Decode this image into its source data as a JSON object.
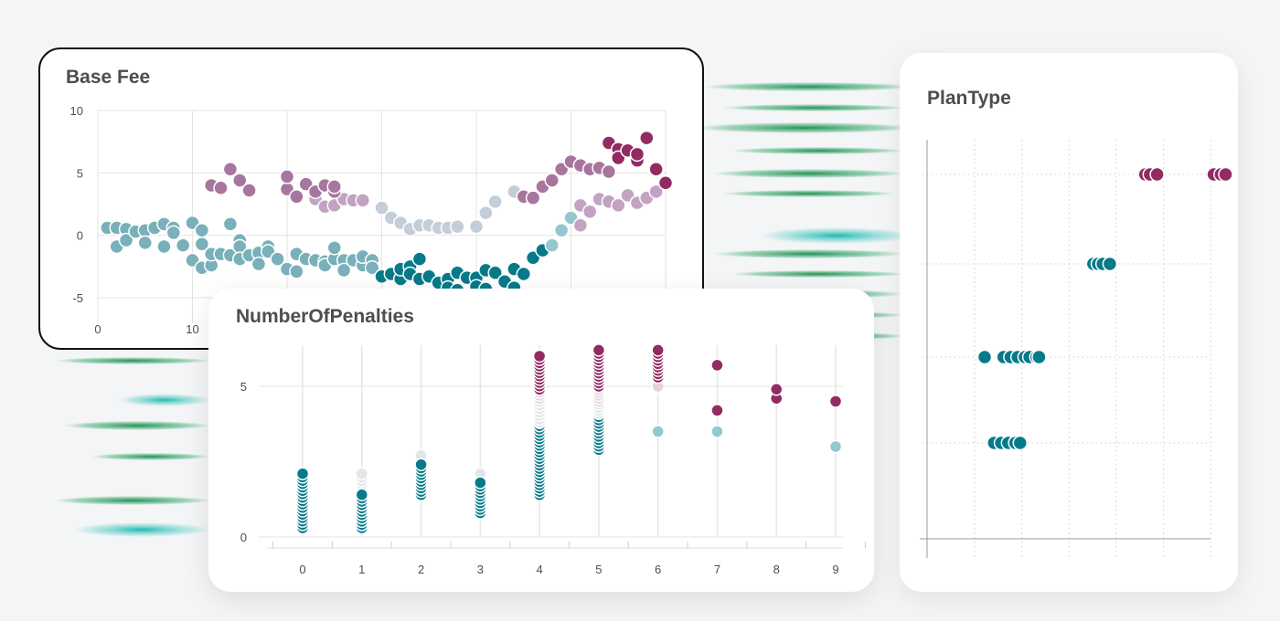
{
  "colors": {
    "teal": "#077a8a",
    "lightTeal": "#95c7cf",
    "mutedTeal": "#79b0ba",
    "gray": "#c4ced8",
    "faintGray": "#e2e6ea",
    "lilac": "#c2a3c2",
    "mauve": "#a7769e",
    "pink": "#e6d2e0",
    "plum": "#922a63"
  },
  "cards": {
    "base_fee": {
      "title": "Base Fee"
    },
    "penalties": {
      "title": "NumberOfPenalties"
    },
    "plan_type": {
      "title": "PlanType"
    }
  },
  "chart_data": [
    {
      "type": "scatter",
      "title": "Base Fee",
      "xlim": [
        0,
        60
      ],
      "ylim": [
        -5,
        10
      ],
      "x_ticks": [
        "0",
        "10"
      ],
      "y_ticks": [
        "10",
        "5",
        "0",
        "-5"
      ],
      "grid": true,
      "series": [
        {
          "color": "mutedTeal",
          "points": [
            [
              1,
              0.6
            ],
            [
              2,
              0.6
            ],
            [
              2,
              -0.9
            ],
            [
              3,
              0.5
            ],
            [
              3,
              -0.4
            ],
            [
              4,
              0.3
            ],
            [
              5,
              0.4
            ],
            [
              5,
              -0.6
            ],
            [
              6,
              0.6
            ],
            [
              7,
              0.9
            ],
            [
              7,
              -0.9
            ],
            [
              8,
              0.6
            ],
            [
              8,
              0.2
            ],
            [
              9,
              -0.8
            ],
            [
              10,
              1.0
            ],
            [
              10,
              -2.0
            ],
            [
              11,
              0.4
            ],
            [
              11,
              -0.7
            ],
            [
              11,
              -2.6
            ],
            [
              12,
              -2.4
            ],
            [
              12,
              -1.5
            ],
            [
              13,
              -1.5
            ],
            [
              14,
              0.9
            ],
            [
              14,
              -1.6
            ],
            [
              15,
              -0.4
            ],
            [
              15,
              -0.9
            ],
            [
              15,
              -1.9
            ],
            [
              16,
              -1.6
            ],
            [
              17,
              -1.4
            ],
            [
              17,
              -2.3
            ],
            [
              18,
              -0.9
            ],
            [
              18,
              -1.3
            ],
            [
              19,
              -1.9
            ],
            [
              20,
              -2.7
            ],
            [
              21,
              -1.5
            ],
            [
              21,
              -2.9
            ],
            [
              22,
              -1.9
            ],
            [
              23,
              -2.0
            ],
            [
              24,
              -2.1
            ],
            [
              24,
              -2.4
            ],
            [
              25,
              -1.9
            ],
            [
              25,
              -1.0
            ],
            [
              26,
              -2.0
            ],
            [
              26,
              -2.8
            ],
            [
              27,
              -2.0
            ],
            [
              28,
              -2.4
            ],
            [
              28,
              -1.7
            ],
            [
              29,
              -2.0
            ],
            [
              29,
              -2.6
            ]
          ]
        },
        {
          "color": "teal",
          "points": [
            [
              30,
              -3.3
            ],
            [
              31,
              -3.1
            ],
            [
              32,
              -3.5
            ],
            [
              32,
              -2.7
            ],
            [
              33,
              -2.5
            ],
            [
              33,
              -3.1
            ],
            [
              34,
              -1.9
            ],
            [
              34,
              -3.5
            ],
            [
              35,
              -3.3
            ],
            [
              36,
              -3.8
            ],
            [
              37,
              -3.5
            ],
            [
              37,
              -4.2
            ],
            [
              38,
              -3.0
            ],
            [
              38,
              -4.4
            ],
            [
              39,
              -3.4
            ],
            [
              40,
              -3.4
            ],
            [
              40,
              -4.1
            ],
            [
              41,
              -4.3
            ],
            [
              41,
              -2.8
            ],
            [
              42,
              -3.0
            ],
            [
              43,
              -3.7
            ],
            [
              44,
              -4.2
            ],
            [
              44,
              -2.7
            ],
            [
              45,
              -3.1
            ],
            [
              46,
              -1.8
            ],
            [
              47,
              -1.2
            ]
          ]
        },
        {
          "color": "lightTeal",
          "points": [
            [
              48,
              -0.8
            ],
            [
              49,
              0.4
            ],
            [
              50,
              1.4
            ]
          ]
        },
        {
          "color": "gray",
          "points": [
            [
              30,
              2.2
            ],
            [
              31,
              1.4
            ],
            [
              32,
              1.0
            ],
            [
              33,
              0.5
            ],
            [
              34,
              0.8
            ],
            [
              35,
              0.8
            ],
            [
              36,
              0.6
            ],
            [
              37,
              0.6
            ],
            [
              38,
              0.7
            ],
            [
              40,
              0.7
            ],
            [
              41,
              1.8
            ],
            [
              42,
              2.7
            ],
            [
              44,
              3.5
            ]
          ]
        },
        {
          "color": "lilac",
          "points": [
            [
              23,
              2.9
            ],
            [
              24,
              2.3
            ],
            [
              25,
              2.4
            ],
            [
              26,
              2.9
            ],
            [
              27,
              2.8
            ],
            [
              28,
              2.8
            ],
            [
              51,
              0.8
            ],
            [
              51,
              2.4
            ],
            [
              52,
              1.9
            ],
            [
              53,
              2.9
            ],
            [
              54,
              2.7
            ],
            [
              55,
              2.4
            ],
            [
              56,
              3.2
            ],
            [
              57,
              2.6
            ],
            [
              58,
              3.0
            ],
            [
              59,
              3.5
            ]
          ]
        },
        {
          "color": "mauve",
          "points": [
            [
              12,
              4.0
            ],
            [
              13,
              3.8
            ],
            [
              14,
              5.3
            ],
            [
              15,
              4.4
            ],
            [
              16,
              3.6
            ],
            [
              20,
              3.7
            ],
            [
              20,
              4.7
            ],
            [
              21,
              3.1
            ],
            [
              22,
              4.1
            ],
            [
              23,
              3.5
            ],
            [
              24,
              4.0
            ],
            [
              25,
              3.5
            ],
            [
              25,
              3.9
            ],
            [
              45,
              3.1
            ],
            [
              46,
              3.0
            ],
            [
              47,
              3.9
            ],
            [
              48,
              4.4
            ],
            [
              49,
              5.3
            ],
            [
              50,
              5.9
            ],
            [
              51,
              5.6
            ],
            [
              52,
              5.3
            ],
            [
              53,
              5.4
            ],
            [
              54,
              5.1
            ]
          ]
        },
        {
          "color": "plum",
          "points": [
            [
              54,
              7.4
            ],
            [
              55,
              6.9
            ],
            [
              55,
              6.2
            ],
            [
              56,
              6.8
            ],
            [
              57,
              6.0
            ],
            [
              57,
              6.5
            ],
            [
              58,
              7.8
            ],
            [
              59,
              5.3
            ],
            [
              60,
              4.2
            ]
          ]
        }
      ]
    },
    {
      "type": "scatter",
      "title": "NumberOfPenalties",
      "x_ticks": [
        "0",
        "1",
        "2",
        "3",
        "4",
        "5",
        "6",
        "7",
        "8",
        "9"
      ],
      "y_ticks": [
        "5",
        "0"
      ],
      "xlim": [
        -0.6,
        9.2
      ],
      "ylim": [
        -0.5,
        6.4
      ],
      "grid": true,
      "columns": [
        {
          "x": 0,
          "dots": [
            {
              "color": "teal",
              "from": 0.3,
              "to": 2.1
            }
          ]
        },
        {
          "x": 1,
          "dots": [
            {
              "color": "faintGray",
              "from": 1.5,
              "to": 2.1
            },
            {
              "color": "teal",
              "from": 0.3,
              "to": 1.4
            }
          ]
        },
        {
          "x": 2,
          "dots": [
            {
              "color": "faintGray",
              "from": 2.4,
              "to": 2.7
            },
            {
              "color": "teal",
              "from": 1.4,
              "to": 2.4
            }
          ]
        },
        {
          "x": 3,
          "dots": [
            {
              "color": "faintGray",
              "from": 1.8,
              "to": 2.1
            },
            {
              "color": "teal",
              "from": 0.8,
              "to": 1.8
            }
          ]
        },
        {
          "x": 4,
          "dots": [
            {
              "color": "teal",
              "from": 1.4,
              "to": 3.8
            },
            {
              "color": "faintGray",
              "from": 3.8,
              "to": 4.6
            },
            {
              "color": "pink",
              "from": 4.6,
              "to": 4.9
            },
            {
              "color": "plum",
              "from": 4.9,
              "to": 6.0
            }
          ]
        },
        {
          "x": 5,
          "dots": [
            {
              "color": "teal",
              "from": 2.9,
              "to": 4.1
            },
            {
              "color": "faintGray",
              "from": 4.1,
              "to": 4.5
            },
            {
              "color": "pink",
              "from": 4.5,
              "to": 5.0
            },
            {
              "color": "plum",
              "from": 5.0,
              "to": 6.2
            }
          ]
        },
        {
          "x": 6,
          "dots": [
            {
              "color": "lightTeal",
              "from": 3.5,
              "to": 3.5
            },
            {
              "color": "pink",
              "from": 5.0,
              "to": 5.0
            },
            {
              "color": "plum",
              "from": 5.3,
              "to": 6.2
            }
          ]
        },
        {
          "x": 7,
          "dots": [
            {
              "color": "lightTeal",
              "from": 3.5,
              "to": 3.5
            },
            {
              "color": "plum",
              "from": 4.2,
              "to": 4.2
            },
            {
              "color": "plum",
              "from": 5.7,
              "to": 5.7
            }
          ]
        },
        {
          "x": 8,
          "dots": [
            {
              "color": "plum",
              "from": 4.6,
              "to": 4.6
            },
            {
              "color": "plum",
              "from": 4.9,
              "to": 4.9
            }
          ]
        },
        {
          "x": 9,
          "dots": [
            {
              "color": "lightTeal",
              "from": 3.0,
              "to": 3.0
            },
            {
              "color": "plum",
              "from": 4.5,
              "to": 4.5
            }
          ]
        }
      ]
    },
    {
      "type": "scatter",
      "title": "PlanType",
      "grid": true,
      "xlim": [
        0,
        6
      ],
      "rows": [
        {
          "row": 1,
          "groups": [
            {
              "color": "plum",
              "x": [
                4.0,
                4.1,
                4.25
              ]
            },
            {
              "color": "plum",
              "x": [
                5.45,
                5.6,
                5.7
              ]
            }
          ]
        },
        {
          "row": 2,
          "groups": [
            {
              "color": "teal",
              "x": [
                2.9,
                3.0,
                3.1,
                3.25
              ]
            }
          ]
        },
        {
          "row": 3,
          "groups": [
            {
              "color": "teal",
              "x": [
                0.6,
                1.0,
                1.15,
                1.3,
                1.45,
                1.55,
                1.7,
                1.75
              ]
            }
          ]
        },
        {
          "row": 4,
          "groups": [
            {
              "color": "teal",
              "x": [
                0.8,
                0.95,
                1.1,
                1.25,
                1.35
              ]
            }
          ]
        }
      ]
    }
  ]
}
